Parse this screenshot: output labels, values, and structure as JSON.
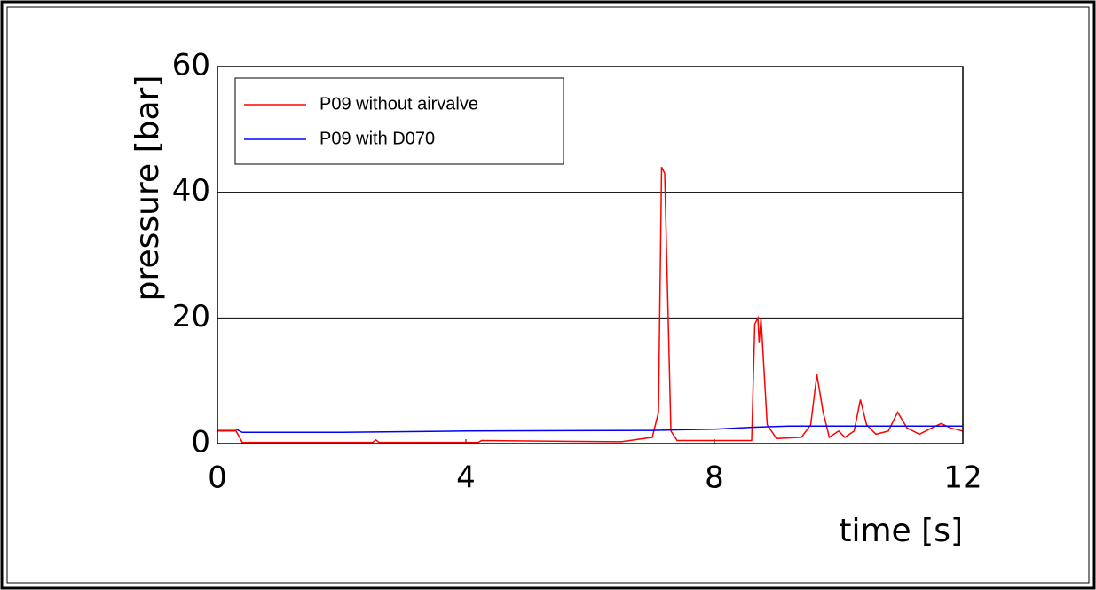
{
  "chart_data": {
    "type": "line",
    "xlabel": "time [s]",
    "ylabel": "pressure [bar]",
    "xlim": [
      0,
      12
    ],
    "xticks": [
      0,
      4,
      8,
      12
    ],
    "ylim": [
      0,
      60
    ],
    "yticks": [
      0,
      20,
      40,
      60
    ],
    "grid": true,
    "legend": "upper left",
    "series": [
      {
        "name": "P09 without airvalve",
        "color": "#ff0000",
        "x": [
          0,
          0.3,
          0.4,
          2.5,
          2.55,
          2.6,
          4.2,
          4.25,
          6.5,
          7.0,
          7.1,
          7.15,
          7.2,
          7.3,
          7.4,
          8.6,
          8.65,
          8.7,
          8.72,
          8.75,
          8.85,
          9.0,
          9.4,
          9.55,
          9.65,
          9.75,
          9.85,
          10.0,
          10.1,
          10.25,
          10.35,
          10.45,
          10.6,
          10.8,
          10.95,
          11.1,
          11.3,
          11.5,
          11.65,
          11.8,
          12
        ],
        "values": [
          2,
          2,
          0.2,
          0.2,
          0.6,
          0.2,
          0.2,
          0.5,
          0.3,
          1,
          5,
          44,
          43,
          2,
          0.5,
          0.5,
          19,
          20,
          16,
          20,
          3,
          0.8,
          1,
          3,
          11,
          5,
          1,
          2,
          1,
          2,
          7,
          3,
          1.5,
          2,
          5,
          2.5,
          1.5,
          2.5,
          3.2,
          2.5,
          2
        ]
      },
      {
        "name": "P09 with D070",
        "color": "#0000ff",
        "x": [
          0,
          0.3,
          0.4,
          2,
          4,
          7,
          8,
          8.6,
          9.2,
          10,
          12
        ],
        "values": [
          2.3,
          2.3,
          1.8,
          1.8,
          2,
          2.1,
          2.3,
          2.6,
          2.8,
          2.8,
          2.8
        ]
      }
    ]
  }
}
